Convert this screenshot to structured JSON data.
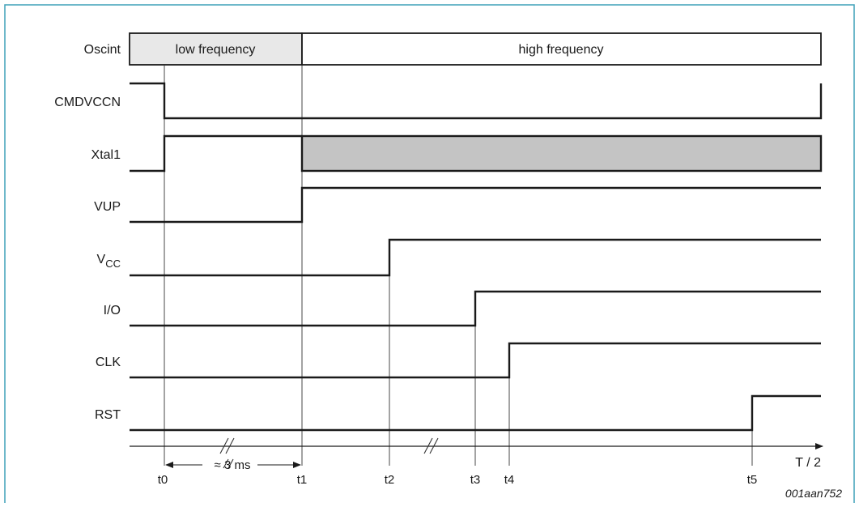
{
  "colors": {
    "border": "#3fa0b8",
    "shade_light": "#e8e8e8",
    "shade_dark": "#c4c4c4",
    "line": "#1a1a1a"
  },
  "oscint": {
    "label": "Oscint",
    "low": "low frequency",
    "high": "high frequency"
  },
  "signals": [
    {
      "id": "cmdvccn",
      "label": "CMDVCCN"
    },
    {
      "id": "xtal1",
      "label": "Xtal1"
    },
    {
      "id": "vup",
      "label": "VUP"
    },
    {
      "id": "vcc",
      "label": "V",
      "sub": "CC"
    },
    {
      "id": "io",
      "label": "I/O"
    },
    {
      "id": "clk",
      "label": "CLK"
    },
    {
      "id": "rst",
      "label": "RST"
    }
  ],
  "timeline": {
    "ticks": [
      "t0",
      "t1",
      "t2",
      "t3",
      "t4",
      "t5"
    ],
    "axis_label": "T / 2",
    "duration": "≈ 3 ms"
  },
  "figure_id": "001aan752"
}
